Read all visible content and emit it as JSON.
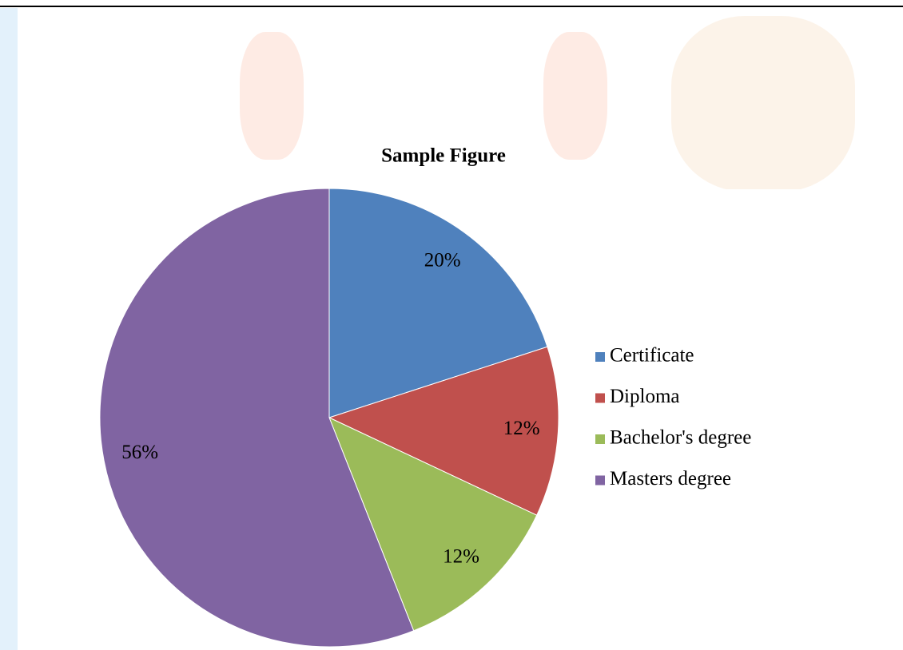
{
  "chart_data": {
    "type": "pie",
    "title": "Sample Figure",
    "categories": [
      "Certificate",
      "Diploma",
      "Bachelor's degree",
      "Masters degree"
    ],
    "values": [
      20,
      12,
      12,
      56
    ],
    "value_labels": [
      "20%",
      "12%",
      "12%",
      "56%"
    ],
    "colors": [
      "#4f81bd",
      "#c0504d",
      "#9bbb59",
      "#8064a2"
    ],
    "legend": "right"
  }
}
